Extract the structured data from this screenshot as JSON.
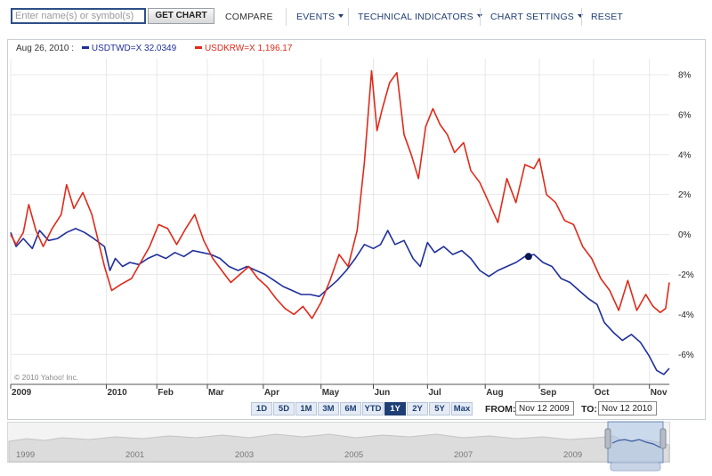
{
  "toolbar": {
    "search_placeholder": "Enter name(s) or symbol(s)",
    "get_chart": "GET CHART",
    "compare": "COMPARE",
    "events": "EVENTS",
    "technical": "TECHNICAL INDICATORS",
    "settings": "CHART SETTINGS",
    "reset": "RESET"
  },
  "legend": {
    "date": "Aug 26, 2010 :",
    "series": [
      {
        "label": "USDTWD=X  32.0349",
        "color": "#1f2f9a"
      },
      {
        "label": "USDKRW=X  1,196.17",
        "color": "#e02a1a"
      }
    ]
  },
  "copyright": "© 2010 Yahoo! Inc.",
  "range_buttons": [
    "1D",
    "5D",
    "1M",
    "3M",
    "6M",
    "YTD",
    "1Y",
    "2Y",
    "5Y",
    "Max"
  ],
  "active_range": "1Y",
  "from_label": "FROM:",
  "from_value": "Nov 12 2009",
  "to_label": "TO:",
  "to_value": "Nov 12 2010",
  "navigator_years": [
    "1999",
    "2001",
    "2003",
    "2005",
    "2007",
    "2009"
  ],
  "chart_data": {
    "type": "line",
    "y_unit": "%",
    "ylim": [
      -7.5,
      8.8
    ],
    "y_ticks": [
      8,
      6,
      4,
      2,
      0,
      -2,
      -4,
      -6
    ],
    "y_tick_labels": [
      "8%",
      "6%",
      "4%",
      "2%",
      "0%",
      "-2%",
      "-4%",
      "-6%"
    ],
    "x_range": [
      "2009-11-12",
      "2010-11-12"
    ],
    "x_ticks": [
      {
        "date": "2009-11-12",
        "label": "2009"
      },
      {
        "date": "2010-01-04",
        "label": "2010"
      },
      {
        "date": "2010-02-01",
        "label": "Feb"
      },
      {
        "date": "2010-03-01",
        "label": "Mar"
      },
      {
        "date": "2010-04-01",
        "label": "Apr"
      },
      {
        "date": "2010-05-03",
        "label": "May"
      },
      {
        "date": "2010-06-01",
        "label": "Jun"
      },
      {
        "date": "2010-07-01",
        "label": "Jul"
      },
      {
        "date": "2010-08-02",
        "label": "Aug"
      },
      {
        "date": "2010-09-01",
        "label": "Sep"
      },
      {
        "date": "2010-10-01",
        "label": "Oct"
      },
      {
        "date": "2010-11-01",
        "label": "Nov"
      }
    ],
    "grid": true,
    "series": [
      {
        "name": "USDTWD=X",
        "color": "#1f2f9a",
        "points": [
          [
            "2009-11-12",
            0.1
          ],
          [
            "2009-11-15",
            -0.6
          ],
          [
            "2009-11-19",
            -0.2
          ],
          [
            "2009-11-24",
            -0.7
          ],
          [
            "2009-11-28",
            0.2
          ],
          [
            "2009-12-03",
            -0.3
          ],
          [
            "2009-12-08",
            -0.2
          ],
          [
            "2009-12-13",
            0.1
          ],
          [
            "2009-12-18",
            0.3
          ],
          [
            "2009-12-23",
            0.1
          ],
          [
            "2009-12-28",
            -0.2
          ],
          [
            "2010-01-03",
            -0.6
          ],
          [
            "2010-01-06",
            -1.8
          ],
          [
            "2010-01-09",
            -1.2
          ],
          [
            "2010-01-13",
            -1.6
          ],
          [
            "2010-01-17",
            -1.4
          ],
          [
            "2010-01-22",
            -1.5
          ],
          [
            "2010-01-27",
            -1.2
          ],
          [
            "2010-02-01",
            -1.0
          ],
          [
            "2010-02-06",
            -1.2
          ],
          [
            "2010-02-11",
            -0.9
          ],
          [
            "2010-02-16",
            -1.1
          ],
          [
            "2010-02-21",
            -0.8
          ],
          [
            "2010-02-26",
            -0.9
          ],
          [
            "2010-03-03",
            -1.0
          ],
          [
            "2010-03-08",
            -1.2
          ],
          [
            "2010-03-13",
            -1.6
          ],
          [
            "2010-03-18",
            -1.8
          ],
          [
            "2010-03-23",
            -1.6
          ],
          [
            "2010-03-28",
            -1.8
          ],
          [
            "2010-04-02",
            -2.0
          ],
          [
            "2010-04-07",
            -2.3
          ],
          [
            "2010-04-12",
            -2.6
          ],
          [
            "2010-04-17",
            -2.8
          ],
          [
            "2010-04-22",
            -3.0
          ],
          [
            "2010-04-27",
            -3.0
          ],
          [
            "2010-05-02",
            -3.1
          ],
          [
            "2010-05-07",
            -2.7
          ],
          [
            "2010-05-12",
            -2.3
          ],
          [
            "2010-05-17",
            -1.8
          ],
          [
            "2010-05-22",
            -1.2
          ],
          [
            "2010-05-27",
            -0.5
          ],
          [
            "2010-06-01",
            -0.7
          ],
          [
            "2010-06-05",
            -0.5
          ],
          [
            "2010-06-09",
            0.2
          ],
          [
            "2010-06-13",
            -0.5
          ],
          [
            "2010-06-18",
            -0.3
          ],
          [
            "2010-06-23",
            -1.2
          ],
          [
            "2010-06-27",
            -1.6
          ],
          [
            "2010-07-01",
            -0.4
          ],
          [
            "2010-07-05",
            -0.9
          ],
          [
            "2010-07-10",
            -0.6
          ],
          [
            "2010-07-15",
            -1.0
          ],
          [
            "2010-07-20",
            -0.8
          ],
          [
            "2010-07-25",
            -1.2
          ],
          [
            "2010-07-30",
            -1.8
          ],
          [
            "2010-08-04",
            -2.1
          ],
          [
            "2010-08-09",
            -1.8
          ],
          [
            "2010-08-14",
            -1.6
          ],
          [
            "2010-08-19",
            -1.4
          ],
          [
            "2010-08-24",
            -1.1
          ],
          [
            "2010-08-29",
            -1.0
          ],
          [
            "2010-09-03",
            -1.4
          ],
          [
            "2010-09-08",
            -1.6
          ],
          [
            "2010-09-13",
            -2.2
          ],
          [
            "2010-09-18",
            -2.4
          ],
          [
            "2010-09-23",
            -2.8
          ],
          [
            "2010-09-28",
            -3.2
          ],
          [
            "2010-10-03",
            -3.5
          ],
          [
            "2010-10-07",
            -4.4
          ],
          [
            "2010-10-12",
            -4.9
          ],
          [
            "2010-10-17",
            -5.3
          ],
          [
            "2010-10-22",
            -5.0
          ],
          [
            "2010-10-27",
            -5.4
          ],
          [
            "2010-11-01",
            -6.1
          ],
          [
            "2010-11-05",
            -6.8
          ],
          [
            "2010-11-09",
            -7.0
          ],
          [
            "2010-11-12",
            -6.7
          ]
        ]
      },
      {
        "name": "USDKRW=X",
        "color": "#e02a1a",
        "points": [
          [
            "2009-11-12",
            0.0
          ],
          [
            "2009-11-15",
            -0.5
          ],
          [
            "2009-11-19",
            0.1
          ],
          [
            "2009-11-22",
            1.5
          ],
          [
            "2009-11-26",
            0.2
          ],
          [
            "2009-11-30",
            -0.6
          ],
          [
            "2009-12-05",
            0.3
          ],
          [
            "2009-12-10",
            1.0
          ],
          [
            "2009-12-13",
            2.5
          ],
          [
            "2009-12-17",
            1.3
          ],
          [
            "2009-12-22",
            2.1
          ],
          [
            "2009-12-27",
            1.0
          ],
          [
            "2010-01-03",
            -1.6
          ],
          [
            "2010-01-07",
            -2.8
          ],
          [
            "2010-01-12",
            -2.5
          ],
          [
            "2010-01-18",
            -2.2
          ],
          [
            "2010-01-23",
            -1.4
          ],
          [
            "2010-01-28",
            -0.6
          ],
          [
            "2010-02-02",
            0.5
          ],
          [
            "2010-02-07",
            0.3
          ],
          [
            "2010-02-12",
            -0.5
          ],
          [
            "2010-02-17",
            0.3
          ],
          [
            "2010-02-22",
            1.0
          ],
          [
            "2010-02-27",
            -0.3
          ],
          [
            "2010-03-04",
            -1.2
          ],
          [
            "2010-03-09",
            -1.8
          ],
          [
            "2010-03-14",
            -2.4
          ],
          [
            "2010-03-19",
            -2.0
          ],
          [
            "2010-03-24",
            -1.6
          ],
          [
            "2010-03-29",
            -2.2
          ],
          [
            "2010-04-03",
            -2.6
          ],
          [
            "2010-04-08",
            -3.2
          ],
          [
            "2010-04-13",
            -3.7
          ],
          [
            "2010-04-18",
            -4.0
          ],
          [
            "2010-04-23",
            -3.6
          ],
          [
            "2010-04-28",
            -4.2
          ],
          [
            "2010-05-03",
            -3.4
          ],
          [
            "2010-05-08",
            -2.3
          ],
          [
            "2010-05-13",
            -1.0
          ],
          [
            "2010-05-18",
            -1.6
          ],
          [
            "2010-05-23",
            0.2
          ],
          [
            "2010-05-27",
            3.6
          ],
          [
            "2010-05-31",
            8.2
          ],
          [
            "2010-06-03",
            5.2
          ],
          [
            "2010-06-06",
            6.3
          ],
          [
            "2010-06-10",
            7.6
          ],
          [
            "2010-06-14",
            8.1
          ],
          [
            "2010-06-18",
            5.0
          ],
          [
            "2010-06-22",
            4.0
          ],
          [
            "2010-06-26",
            2.8
          ],
          [
            "2010-06-30",
            5.4
          ],
          [
            "2010-07-04",
            6.3
          ],
          [
            "2010-07-08",
            5.5
          ],
          [
            "2010-07-12",
            5.0
          ],
          [
            "2010-07-16",
            4.1
          ],
          [
            "2010-07-21",
            4.6
          ],
          [
            "2010-07-25",
            3.2
          ],
          [
            "2010-07-30",
            2.6
          ],
          [
            "2010-08-04",
            1.6
          ],
          [
            "2010-08-09",
            0.6
          ],
          [
            "2010-08-14",
            2.8
          ],
          [
            "2010-08-19",
            1.6
          ],
          [
            "2010-08-24",
            3.5
          ],
          [
            "2010-08-29",
            3.3
          ],
          [
            "2010-09-01",
            3.8
          ],
          [
            "2010-09-05",
            2.0
          ],
          [
            "2010-09-10",
            1.6
          ],
          [
            "2010-09-15",
            0.7
          ],
          [
            "2010-09-20",
            0.5
          ],
          [
            "2010-09-25",
            -0.6
          ],
          [
            "2010-09-30",
            -1.2
          ],
          [
            "2010-10-05",
            -2.2
          ],
          [
            "2010-10-10",
            -2.8
          ],
          [
            "2010-10-15",
            -3.8
          ],
          [
            "2010-10-20",
            -2.3
          ],
          [
            "2010-10-25",
            -3.8
          ],
          [
            "2010-10-30",
            -3.0
          ],
          [
            "2010-11-03",
            -3.6
          ],
          [
            "2010-11-07",
            -3.9
          ],
          [
            "2010-11-10",
            -3.7
          ],
          [
            "2010-11-12",
            -2.4
          ]
        ]
      }
    ],
    "highlight_point": {
      "series": "USDTWD=X",
      "date": "2010-08-26",
      "value": -1.1
    }
  }
}
